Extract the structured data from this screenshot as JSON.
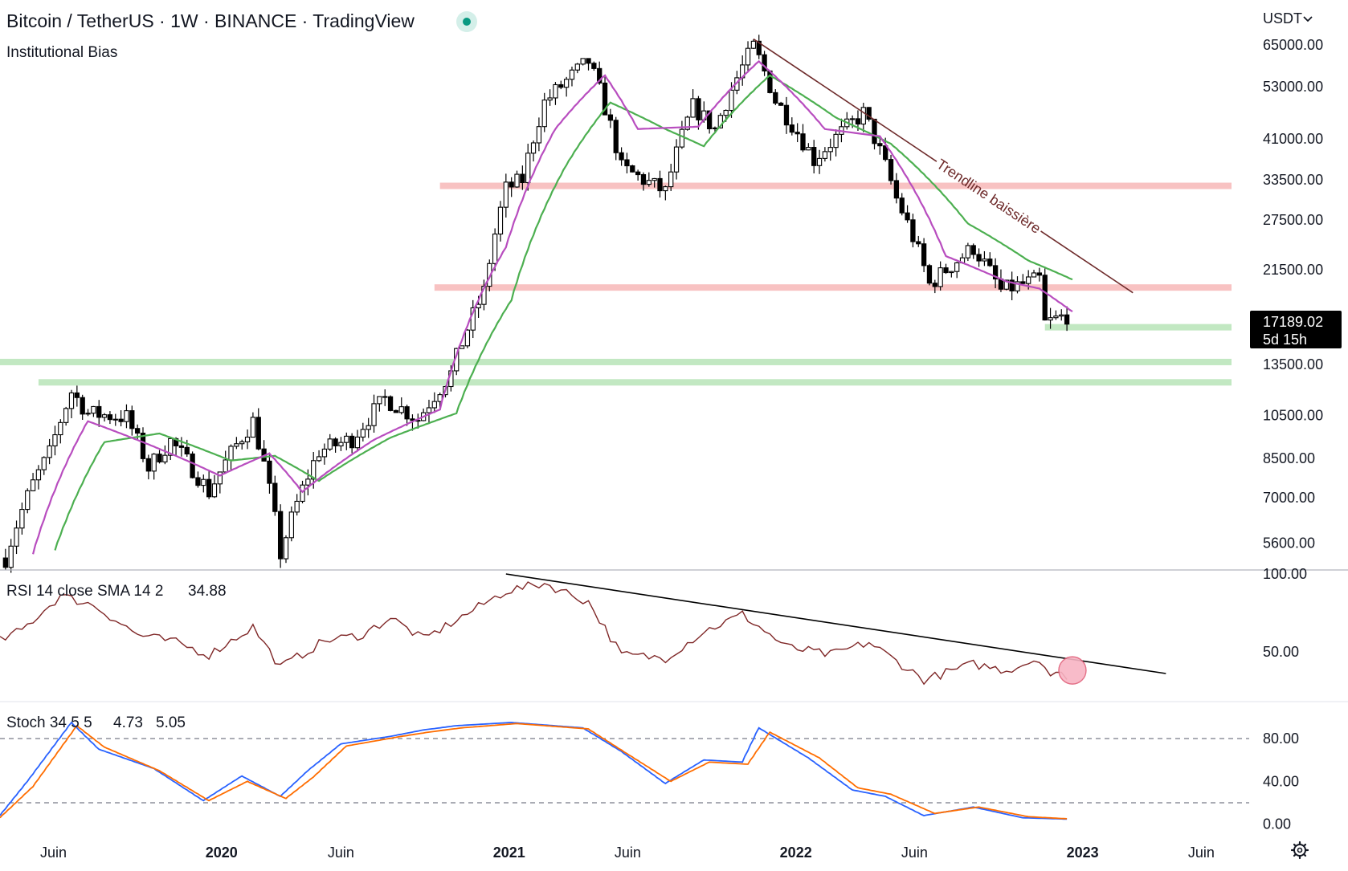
{
  "header": {
    "title": "Bitcoin / TetherUS · 1W · BINANCE · TradingView",
    "status_color": "#089981",
    "indicator_name": "Institutional Bias",
    "currency": "USDT",
    "currency_icon": "chevron-down-icon"
  },
  "price_badge": {
    "price": "17189.02",
    "countdown": "5d 15h"
  },
  "annotation": {
    "trendline_label": "Trendline baissière"
  },
  "rsi_legend": {
    "name": "RSI 14 close SMA 14 2",
    "value": "34.88",
    "value_color": "#7f2727"
  },
  "stoch_legend": {
    "name": "Stoch 34 5 5",
    "k_value": "4.73",
    "d_value": "5.05",
    "k_color": "#2962ff",
    "d_color": "#ff6d00"
  },
  "settings_icon": "gear-icon",
  "colors": {
    "candle": "#000000",
    "ema_fast": "#b84dbf",
    "ema_slow": "#4caf50",
    "resistance_zone": "#f7b7b7",
    "support_zone": "#b7e4b7",
    "trendline": "#6e2b2b",
    "rsi_line": "#7f2727",
    "rsi_trendline": "#000000",
    "signal_circle": "#f8b4c4"
  },
  "chart_data": [
    {
      "type": "candlestick",
      "title": "Bitcoin / TetherUS · 1W · BINANCE",
      "scale": "log",
      "ylim": [
        5000,
        75000
      ],
      "xlim": [
        "2019-03-25",
        "2023-08-01"
      ],
      "x_ticks": [
        {
          "date": "2019-06-01",
          "label": "Juin"
        },
        {
          "date": "2020-01-01",
          "label": "2020"
        },
        {
          "date": "2020-06-01",
          "label": "Juin"
        },
        {
          "date": "2021-01-01",
          "label": "2021"
        },
        {
          "date": "2021-06-01",
          "label": "Juin"
        },
        {
          "date": "2022-01-01",
          "label": "2022"
        },
        {
          "date": "2022-06-01",
          "label": "Juin"
        },
        {
          "date": "2023-01-01",
          "label": "2023"
        },
        {
          "date": "2023-06-01",
          "label": "Juin"
        }
      ],
      "y_ticks": [
        5600,
        7000,
        8500,
        10500,
        13500,
        21500,
        27500,
        33500,
        41000,
        53000,
        65000
      ],
      "y_tick_labels": [
        "5600.00",
        "7000.00",
        "8500.00",
        "10500.00",
        "13500.00",
        "21500.00",
        "27500.00",
        "33500.00",
        "41000.00",
        "53000.00",
        "65000.00"
      ],
      "series": [
        {
          "type": "candles",
          "anchors": [
            [
              "2019-04-01",
              5200
            ],
            [
              "2019-05-06",
              7500
            ],
            [
              "2019-05-27",
              8700
            ],
            [
              "2019-06-24",
              11800
            ],
            [
              "2019-07-15",
              10600
            ],
            [
              "2019-09-02",
              10400
            ],
            [
              "2019-09-30",
              8100
            ],
            [
              "2019-10-28",
              9250
            ],
            [
              "2019-12-16",
              7200
            ],
            [
              "2020-02-10",
              10200
            ],
            [
              "2020-03-16",
              5300
            ],
            [
              "2020-05-04",
              8800
            ],
            [
              "2020-06-15",
              9350
            ],
            [
              "2020-07-27",
              11400
            ],
            [
              "2020-09-07",
              10300
            ],
            [
              "2020-10-19",
              12900
            ],
            [
              "2020-11-30",
              19300
            ],
            [
              "2020-12-28",
              32000
            ],
            [
              "2021-01-18",
              33500
            ],
            [
              "2021-02-15",
              49000
            ],
            [
              "2021-04-12",
              60000
            ],
            [
              "2021-05-24",
              35500
            ],
            [
              "2021-07-19",
              31500
            ],
            [
              "2021-08-23",
              48000
            ],
            [
              "2021-09-20",
              43000
            ],
            [
              "2021-11-08",
              64500
            ],
            [
              "2021-12-06",
              49500
            ],
            [
              "2022-01-24",
              37000
            ],
            [
              "2022-03-28",
              46500
            ],
            [
              "2022-05-09",
              30500
            ],
            [
              "2022-06-20",
              20000
            ],
            [
              "2022-08-15",
              24000
            ],
            [
              "2022-09-19",
              19400
            ],
            [
              "2022-11-07",
              20500
            ],
            [
              "2022-11-14",
              16500
            ],
            [
              "2022-12-12",
              17189
            ]
          ]
        },
        {
          "type": "moving-average-fast",
          "anchors": [
            [
              "2019-05-06",
              5300
            ],
            [
              "2019-07-15",
              10200
            ],
            [
              "2019-10-07",
              9000
            ],
            [
              "2019-12-30",
              7800
            ],
            [
              "2020-03-02",
              8700
            ],
            [
              "2020-04-13",
              7200
            ],
            [
              "2020-07-13",
              9300
            ],
            [
              "2020-10-05",
              10800
            ],
            [
              "2020-12-28",
              24000
            ],
            [
              "2021-03-01",
              43000
            ],
            [
              "2021-05-03",
              56000
            ],
            [
              "2021-06-14",
              43000
            ],
            [
              "2021-08-30",
              43500
            ],
            [
              "2021-11-15",
              60000
            ],
            [
              "2022-02-07",
              43000
            ],
            [
              "2022-04-18",
              41500
            ],
            [
              "2022-07-11",
              23000
            ],
            [
              "2022-09-26",
              20300
            ],
            [
              "2022-11-07",
              19600
            ],
            [
              "2022-12-19",
              17500
            ]
          ]
        },
        {
          "type": "moving-average-slow",
          "anchors": [
            [
              "2019-06-03",
              5400
            ],
            [
              "2019-08-05",
              9200
            ],
            [
              "2019-10-14",
              9600
            ],
            [
              "2020-01-13",
              8400
            ],
            [
              "2020-03-09",
              8600
            ],
            [
              "2020-05-04",
              7600
            ],
            [
              "2020-08-03",
              9400
            ],
            [
              "2020-10-26",
              10600
            ],
            [
              "2021-01-04",
              18500
            ],
            [
              "2021-03-15",
              36000
            ],
            [
              "2021-05-10",
              49000
            ],
            [
              "2021-07-19",
              43000
            ],
            [
              "2021-09-06",
              39500
            ],
            [
              "2021-11-29",
              56000
            ],
            [
              "2022-02-21",
              45500
            ],
            [
              "2022-05-02",
              40000
            ],
            [
              "2022-08-08",
              27000
            ],
            [
              "2022-10-24",
              22500
            ],
            [
              "2022-12-19",
              20500
            ]
          ]
        }
      ],
      "horizontal_zones": [
        {
          "price": 32500,
          "from": "2020-10-05",
          "color": "resistance"
        },
        {
          "price": 19700,
          "from": "2020-09-28",
          "color": "resistance"
        },
        {
          "price": 16200,
          "from": "2022-11-14",
          "color": "support"
        },
        {
          "price": 13650,
          "from": "2019-03-25",
          "color": "support"
        },
        {
          "price": 12350,
          "from": "2019-05-13",
          "color": "support"
        }
      ],
      "trendline": {
        "from": [
          "2021-11-08",
          67000
        ],
        "to": [
          "2023-03-06",
          19200
        ]
      }
    },
    {
      "type": "line",
      "title": "RSI 14 close SMA 14 2",
      "ylim": [
        20,
        100
      ],
      "y_ticks": [
        50,
        100
      ],
      "y_tick_labels": [
        "50.00",
        "100.00"
      ],
      "series": [
        {
          "values_anchors": [
            [
              "2019-03-25",
              57
            ],
            [
              "2019-04-22",
              64
            ],
            [
              "2019-06-10",
              86
            ],
            [
              "2019-07-22",
              80
            ],
            [
              "2019-09-16",
              61
            ],
            [
              "2019-11-04",
              56
            ],
            [
              "2019-12-16",
              48
            ],
            [
              "2020-02-10",
              66
            ],
            [
              "2020-03-16",
              40
            ],
            [
              "2020-05-11",
              57
            ],
            [
              "2020-06-29",
              61
            ],
            [
              "2020-08-03",
              72
            ],
            [
              "2020-09-14",
              58
            ],
            [
              "2020-12-28",
              89
            ],
            [
              "2021-02-15",
              94
            ],
            [
              "2021-04-12",
              82
            ],
            [
              "2021-05-24",
              48
            ],
            [
              "2021-07-19",
              46
            ],
            [
              "2021-09-06",
              63
            ],
            [
              "2021-10-25",
              74
            ],
            [
              "2021-12-20",
              53
            ],
            [
              "2022-02-14",
              48
            ],
            [
              "2022-04-04",
              56
            ],
            [
              "2022-06-13",
              32
            ],
            [
              "2022-08-15",
              42
            ],
            [
              "2022-09-26",
              38
            ],
            [
              "2022-11-07",
              46
            ],
            [
              "2022-11-21",
              35
            ],
            [
              "2022-12-12",
              34.88
            ]
          ]
        }
      ],
      "trendline": {
        "from": [
          "2020-12-28",
          100
        ],
        "to": [
          "2023-04-17",
          36
        ]
      },
      "marker": {
        "date": "2022-12-19",
        "value": 38
      }
    },
    {
      "type": "line",
      "title": "Stoch 34 5 5",
      "ylim": [
        -10,
        110
      ],
      "y_ticks": [
        0,
        40,
        80
      ],
      "y_tick_labels": [
        "0.00",
        "40.00",
        "80.00"
      ],
      "bands": [
        20,
        80
      ],
      "series": [
        {
          "name": "K",
          "values_anchors": [
            [
              "2019-03-25",
              8
            ],
            [
              "2019-04-29",
              40
            ],
            [
              "2019-06-24",
              95
            ],
            [
              "2019-07-29",
              70
            ],
            [
              "2019-10-07",
              52
            ],
            [
              "2019-12-09",
              22
            ],
            [
              "2020-01-27",
              45
            ],
            [
              "2020-03-16",
              26
            ],
            [
              "2020-04-20",
              50
            ],
            [
              "2020-06-01",
              75
            ],
            [
              "2020-08-03",
              82
            ],
            [
              "2020-09-14",
              88
            ],
            [
              "2020-10-26",
              92
            ],
            [
              "2021-01-04",
              95
            ],
            [
              "2021-04-05",
              90
            ],
            [
              "2021-05-24",
              68
            ],
            [
              "2021-07-19",
              38
            ],
            [
              "2021-09-06",
              60
            ],
            [
              "2021-10-25",
              58
            ],
            [
              "2021-11-15",
              90
            ],
            [
              "2022-01-17",
              62
            ],
            [
              "2022-03-14",
              32
            ],
            [
              "2022-04-25",
              26
            ],
            [
              "2022-06-13",
              8
            ],
            [
              "2022-08-15",
              16
            ],
            [
              "2022-10-17",
              6
            ],
            [
              "2022-12-12",
              4.73
            ]
          ]
        },
        {
          "name": "D",
          "values_anchors": [
            [
              "2019-03-25",
              6
            ],
            [
              "2019-05-06",
              35
            ],
            [
              "2019-07-01",
              92
            ],
            [
              "2019-08-05",
              72
            ],
            [
              "2019-10-14",
              50
            ],
            [
              "2019-12-16",
              22
            ],
            [
              "2020-02-03",
              40
            ],
            [
              "2020-03-23",
              24
            ],
            [
              "2020-04-27",
              44
            ],
            [
              "2020-06-08",
              73
            ],
            [
              "2020-08-17",
              82
            ],
            [
              "2020-09-21",
              86
            ],
            [
              "2020-11-02",
              90
            ],
            [
              "2021-01-11",
              94
            ],
            [
              "2021-04-12",
              89
            ],
            [
              "2021-05-31",
              66
            ],
            [
              "2021-07-26",
              40
            ],
            [
              "2021-09-13",
              58
            ],
            [
              "2021-11-01",
              56
            ],
            [
              "2021-11-29",
              86
            ],
            [
              "2022-01-31",
              62
            ],
            [
              "2022-03-21",
              34
            ],
            [
              "2022-05-02",
              28
            ],
            [
              "2022-06-27",
              10
            ],
            [
              "2022-08-22",
              16
            ],
            [
              "2022-10-24",
              7
            ],
            [
              "2022-12-12",
              5.05
            ]
          ]
        }
      ]
    }
  ]
}
